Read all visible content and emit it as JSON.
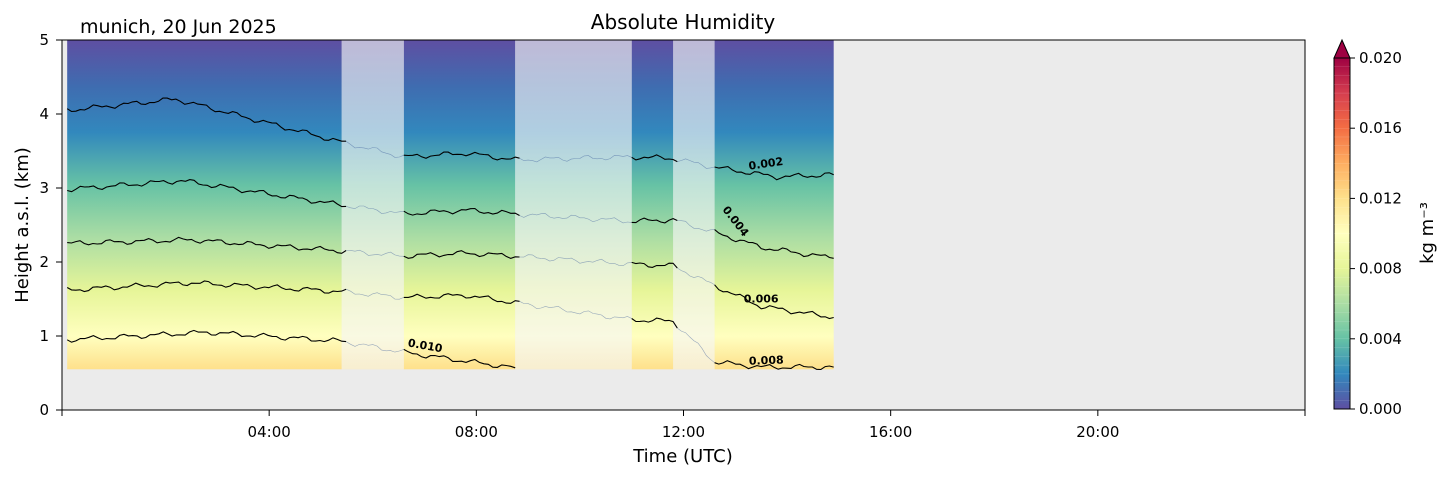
{
  "figure": {
    "site_date": "munich, 20 Jun 2025",
    "title": "Absolute Humidity"
  },
  "chart_data": {
    "type": "heatmap",
    "title": "Absolute Humidity",
    "xlabel": "Time (UTC)",
    "ylabel": "Height a.s.l. (km)",
    "xlim": [
      0,
      24
    ],
    "ylim": [
      0,
      5
    ],
    "x_tick_values": [
      4,
      8,
      12,
      16,
      20
    ],
    "x_tick_labels": [
      "04:00",
      "08:00",
      "12:00",
      "16:00",
      "20:00"
    ],
    "y_tick_values": [
      0,
      1,
      2,
      3,
      4,
      5
    ],
    "y_tick_labels": [
      "0",
      "1",
      "2",
      "3",
      "4",
      "5"
    ],
    "colorbar": {
      "label": "kg m⁻³",
      "range": [
        0.0,
        0.02
      ],
      "tick_values": [
        0.0,
        0.004,
        0.008,
        0.012,
        0.016,
        0.02
      ],
      "tick_labels": [
        "0.000",
        "0.004",
        "0.008",
        "0.012",
        "0.016",
        "0.020"
      ],
      "extend": "max",
      "colormap": "Spectral_r",
      "levels": 40
    },
    "no_data_color": "#ebebeb",
    "data_bottom_km": 0.55,
    "valid_segments": [
      [
        0.1,
        5.4
      ],
      [
        6.6,
        8.75
      ],
      [
        11.0,
        11.8
      ],
      [
        12.6,
        14.9
      ]
    ],
    "flagged_segments": [
      [
        5.4,
        6.6
      ],
      [
        8.75,
        11.0
      ],
      [
        11.8,
        12.6
      ]
    ],
    "contours": [
      {
        "level": 0.002,
        "label": "0.002",
        "height_km": [
          [
            0.1,
            4.05
          ],
          [
            2.2,
            4.2
          ],
          [
            5.4,
            3.62
          ],
          [
            6.6,
            3.42
          ],
          [
            7.8,
            3.47
          ],
          [
            8.75,
            3.38
          ],
          [
            11.0,
            3.42
          ],
          [
            11.8,
            3.4
          ],
          [
            12.6,
            3.28
          ],
          [
            13.8,
            3.15
          ],
          [
            14.9,
            3.18
          ]
        ]
      },
      {
        "level": 0.004,
        "label": "0.004",
        "height_km": [
          [
            0.1,
            2.98
          ],
          [
            2.3,
            3.1
          ],
          [
            5.4,
            2.77
          ],
          [
            6.6,
            2.65
          ],
          [
            7.8,
            2.7
          ],
          [
            8.75,
            2.65
          ],
          [
            11.0,
            2.55
          ],
          [
            11.8,
            2.57
          ],
          [
            12.6,
            2.4
          ],
          [
            13.5,
            2.2
          ],
          [
            14.9,
            2.05
          ]
        ]
      },
      {
        "level": 0.006,
        "label": "0.006",
        "height_km": [
          [
            0.1,
            2.25
          ],
          [
            2.5,
            2.3
          ],
          [
            5.4,
            2.15
          ],
          [
            6.6,
            2.08
          ],
          [
            7.8,
            2.12
          ],
          [
            8.75,
            2.08
          ],
          [
            11.0,
            1.97
          ],
          [
            11.8,
            1.95
          ],
          [
            12.6,
            1.68
          ],
          [
            13.5,
            1.4
          ],
          [
            14.9,
            1.25
          ]
        ]
      },
      {
        "level": 0.008,
        "label": "0.008",
        "height_km": [
          [
            0.1,
            1.62
          ],
          [
            2.5,
            1.72
          ],
          [
            5.4,
            1.6
          ],
          [
            6.6,
            1.52
          ],
          [
            7.8,
            1.55
          ],
          [
            8.75,
            1.45
          ],
          [
            11.0,
            1.22
          ],
          [
            11.8,
            1.2
          ],
          [
            12.6,
            0.65
          ],
          [
            13.5,
            0.58
          ],
          [
            14.9,
            0.58
          ]
        ]
      },
      {
        "level": 0.01,
        "label": "0.010",
        "height_km": [
          [
            0.1,
            0.95
          ],
          [
            2.8,
            1.05
          ],
          [
            5.4,
            0.93
          ],
          [
            6.6,
            0.78
          ],
          [
            7.8,
            0.66
          ],
          [
            8.75,
            0.57
          ]
        ]
      }
    ]
  }
}
